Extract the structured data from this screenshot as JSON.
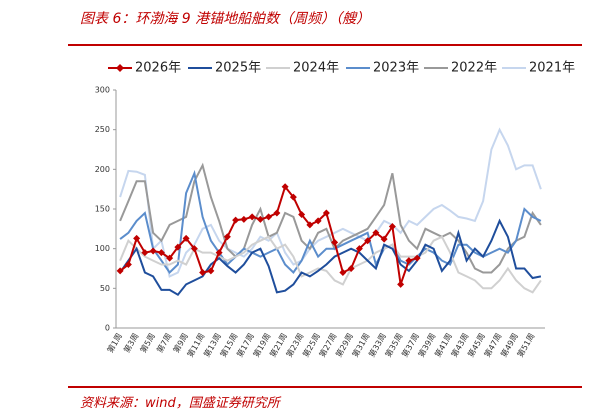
{
  "chart_data": {
    "type": "line",
    "title": "图表 6：环渤海 9 港锚地船舶数（周频）（艘）",
    "source": "资料来源：wind，国盛证券研究所",
    "categories": [
      "第1周",
      null,
      "第3周",
      null,
      "第5周",
      null,
      "第7周",
      null,
      "第9周",
      null,
      "第11周",
      null,
      "第13周",
      null,
      "第15周",
      null,
      "第17周",
      null,
      "第19周",
      null,
      "第21周",
      null,
      "第23周",
      null,
      "第25周",
      null,
      "第27周",
      null,
      "第29周",
      null,
      "第31周",
      null,
      "第33周",
      null,
      "第35周",
      null,
      "第37周",
      null,
      "第39周",
      null,
      "第41周",
      null,
      "第43周",
      null,
      "第45周",
      null,
      "第47周",
      null,
      "第49周",
      null,
      "第51周",
      null
    ],
    "ylim": [
      0,
      300
    ],
    "yticks": [
      0,
      50,
      100,
      150,
      200,
      250,
      300
    ],
    "series": [
      {
        "name": "2026年",
        "color": "#c00000",
        "marker": "diamond",
        "values": [
          72,
          80,
          113,
          95,
          97,
          95,
          88,
          102,
          113,
          100,
          70,
          72,
          95,
          115,
          136,
          137,
          140,
          137,
          140,
          145,
          178,
          165,
          143,
          130,
          135,
          145,
          108,
          70,
          75,
          100,
          110,
          120,
          112,
          128,
          55,
          85,
          88,
          null,
          null,
          null,
          null,
          null,
          null,
          null,
          null,
          null,
          null,
          null,
          null,
          null,
          null,
          null
        ]
      },
      {
        "name": "2025年",
        "color": "#1f4e9c",
        "values": [
          70,
          85,
          100,
          70,
          65,
          48,
          48,
          42,
          55,
          60,
          65,
          80,
          88,
          78,
          70,
          80,
          95,
          100,
          78,
          45,
          47,
          55,
          70,
          65,
          72,
          80,
          90,
          95,
          100,
          95,
          85,
          75,
          105,
          100,
          80,
          72,
          85,
          105,
          100,
          72,
          85,
          120,
          85,
          100,
          90,
          110,
          135,
          115,
          75,
          75,
          63,
          65
        ]
      },
      {
        "name": "2024年",
        "color": "#d0d0d0",
        "values": [
          85,
          110,
          100,
          90,
          85,
          80,
          80,
          85,
          80,
          100,
          95,
          95,
          90,
          85,
          90,
          95,
          105,
          110,
          115,
          100,
          105,
          90,
          65,
          70,
          75,
          72,
          60,
          55,
          75,
          80,
          85,
          95,
          100,
          105,
          90,
          90,
          90,
          95,
          110,
          115,
          95,
          70,
          65,
          60,
          50,
          50,
          60,
          75,
          60,
          50,
          45,
          60
        ]
      },
      {
        "name": "2023年",
        "color": "#5b8dcc",
        "values": [
          112,
          120,
          135,
          145,
          100,
          85,
          70,
          80,
          170,
          195,
          140,
          110,
          95,
          80,
          90,
          100,
          95,
          90,
          95,
          100,
          80,
          70,
          85,
          110,
          90,
          100,
          100,
          105,
          110,
          115,
          120,
          80,
          100,
          105,
          85,
          80,
          90,
          100,
          95,
          85,
          80,
          105,
          105,
          95,
          90,
          95,
          100,
          95,
          110,
          150,
          140,
          135
        ]
      },
      {
        "name": "2022年",
        "color": "#999999",
        "values": [
          135,
          160,
          185,
          185,
          120,
          110,
          130,
          135,
          140,
          185,
          205,
          165,
          135,
          100,
          90,
          100,
          130,
          150,
          115,
          120,
          145,
          140,
          110,
          100,
          120,
          125,
          100,
          110,
          115,
          120,
          125,
          140,
          155,
          195,
          130,
          110,
          100,
          125,
          120,
          115,
          120,
          110,
          95,
          75,
          70,
          70,
          80,
          100,
          110,
          115,
          145,
          130
        ]
      },
      {
        "name": "2021年",
        "color": "#c6d6ee",
        "values": [
          165,
          198,
          197,
          193,
          100,
          110,
          65,
          70,
          95,
          105,
          125,
          130,
          110,
          100,
          95,
          90,
          100,
          115,
          110,
          120,
          95,
          80,
          85,
          100,
          110,
          115,
          120,
          125,
          120,
          115,
          110,
          120,
          135,
          130,
          120,
          135,
          130,
          140,
          150,
          155,
          148,
          140,
          138,
          135,
          160,
          225,
          250,
          230,
          200,
          205,
          205,
          175
        ]
      }
    ]
  }
}
